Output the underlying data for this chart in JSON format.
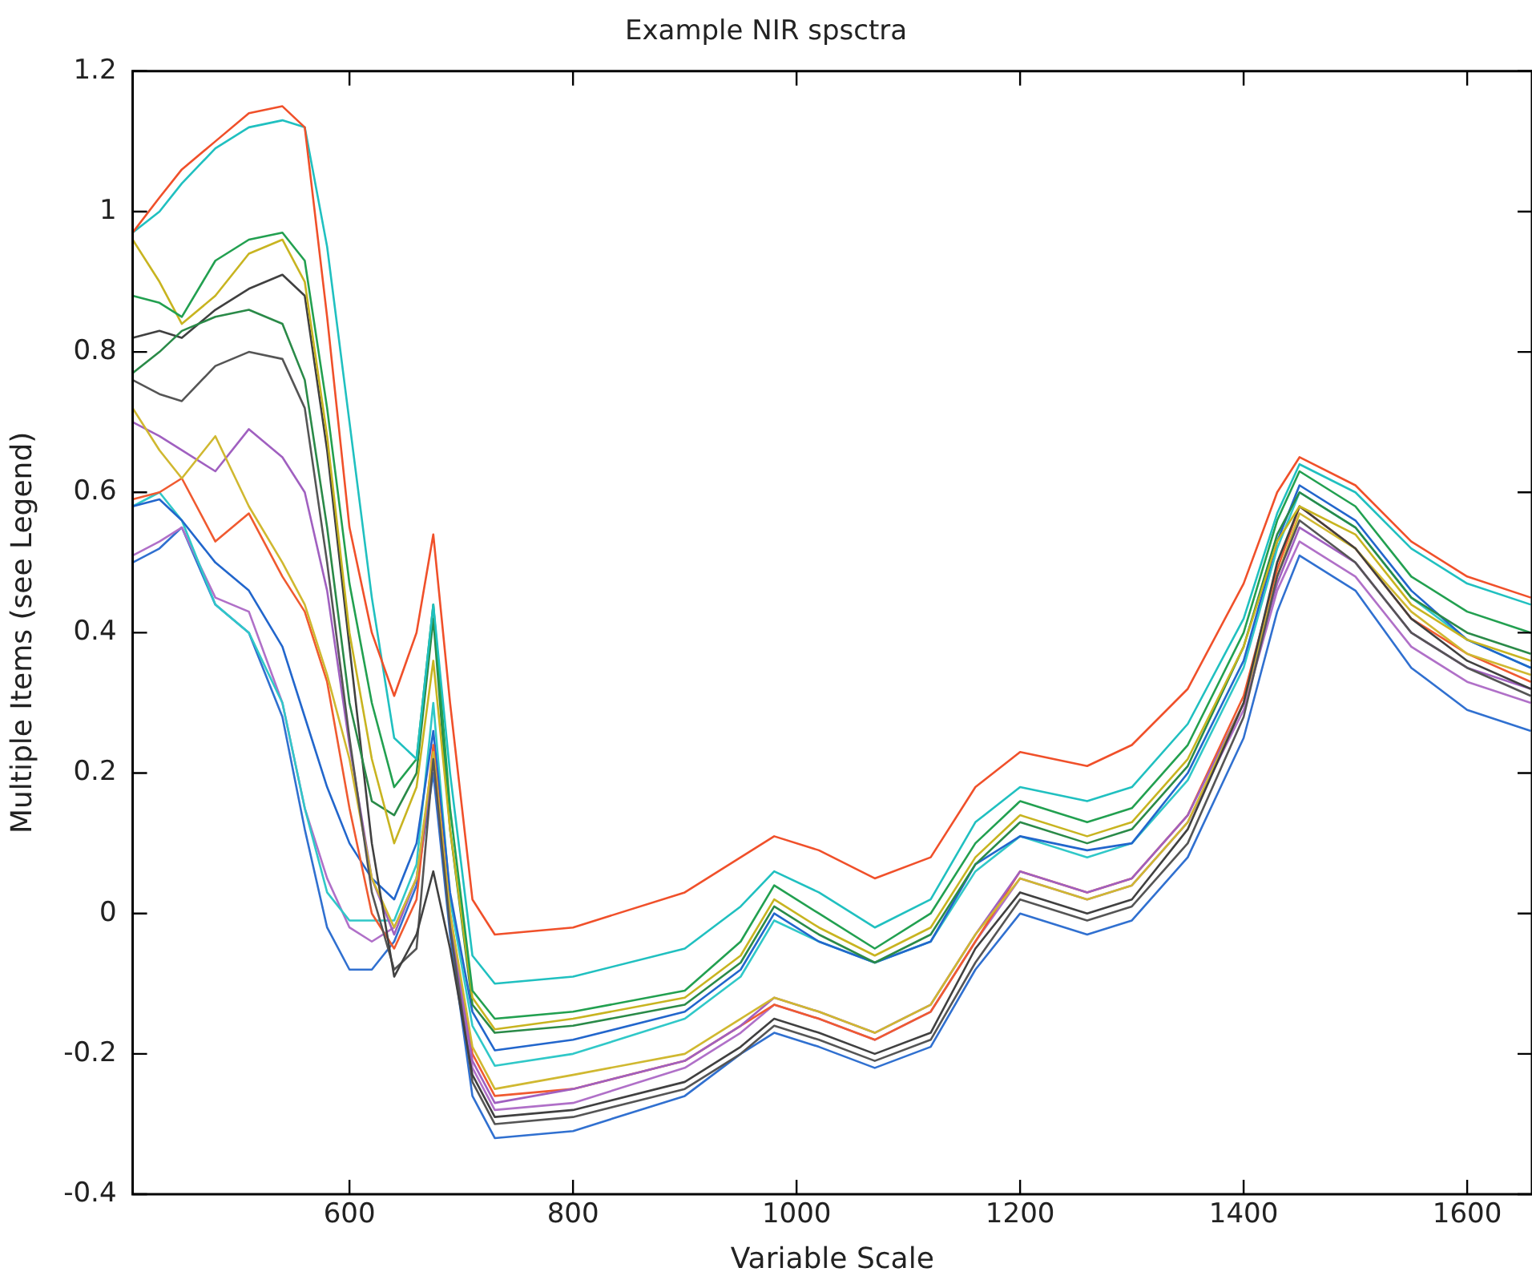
{
  "chart_data": {
    "type": "line",
    "title": "Example NIR spsctra",
    "xlabel": "Variable Scale",
    "ylabel": "Multiple Items (see Legend)",
    "x": [
      406,
      430,
      450,
      480,
      510,
      540,
      560,
      580,
      600,
      620,
      640,
      660,
      675,
      690,
      710,
      730,
      800,
      900,
      950,
      980,
      1020,
      1070,
      1120,
      1160,
      1200,
      1260,
      1300,
      1350,
      1400,
      1430,
      1450,
      1500,
      1550,
      1600,
      1657
    ],
    "series": [
      {
        "color": "#f0502a",
        "values": [
          0.97,
          1.02,
          1.06,
          1.1,
          1.14,
          1.15,
          1.12,
          0.85,
          0.55,
          0.4,
          0.31,
          0.4,
          0.54,
          0.3,
          0.02,
          -0.03,
          -0.02,
          0.03,
          0.08,
          0.11,
          0.09,
          0.05,
          0.08,
          0.18,
          0.23,
          0.21,
          0.24,
          0.32,
          0.47,
          0.6,
          0.65,
          0.61,
          0.53,
          0.48,
          0.45
        ]
      },
      {
        "color": "#20c0c0",
        "values": [
          0.97,
          1.0,
          1.04,
          1.09,
          1.12,
          1.13,
          1.12,
          0.95,
          0.7,
          0.45,
          0.25,
          0.22,
          0.44,
          0.2,
          -0.06,
          -0.1,
          -0.09,
          -0.05,
          0.01,
          0.06,
          0.03,
          -0.02,
          0.02,
          0.13,
          0.18,
          0.16,
          0.18,
          0.27,
          0.42,
          0.57,
          0.64,
          0.6,
          0.52,
          0.47,
          0.44
        ]
      },
      {
        "color": "#22a050",
        "values": [
          0.88,
          0.87,
          0.85,
          0.93,
          0.96,
          0.97,
          0.93,
          0.72,
          0.47,
          0.3,
          0.18,
          0.22,
          0.44,
          0.15,
          -0.11,
          -0.15,
          -0.14,
          -0.11,
          -0.04,
          0.04,
          0.0,
          -0.05,
          0.0,
          0.1,
          0.16,
          0.13,
          0.15,
          0.24,
          0.4,
          0.56,
          0.63,
          0.58,
          0.48,
          0.43,
          0.4
        ]
      },
      {
        "color": "#c8b420",
        "values": [
          0.96,
          0.9,
          0.84,
          0.88,
          0.94,
          0.96,
          0.9,
          0.68,
          0.4,
          0.22,
          0.1,
          0.18,
          0.36,
          0.12,
          -0.12,
          -0.165,
          -0.15,
          -0.12,
          -0.06,
          0.02,
          -0.02,
          -0.06,
          -0.02,
          0.08,
          0.14,
          0.11,
          0.13,
          0.22,
          0.38,
          0.53,
          0.58,
          0.54,
          0.44,
          0.39,
          0.36
        ]
      },
      {
        "color": "#2a8a48",
        "values": [
          0.77,
          0.8,
          0.83,
          0.85,
          0.86,
          0.84,
          0.76,
          0.55,
          0.3,
          0.16,
          0.14,
          0.2,
          0.42,
          0.12,
          -0.13,
          -0.17,
          -0.16,
          -0.13,
          -0.07,
          0.01,
          -0.03,
          -0.07,
          -0.03,
          0.07,
          0.13,
          0.1,
          0.12,
          0.21,
          0.38,
          0.54,
          0.6,
          0.55,
          0.45,
          0.4,
          0.37
        ]
      },
      {
        "color": "#404040",
        "values": [
          0.82,
          0.83,
          0.82,
          0.86,
          0.89,
          0.91,
          0.88,
          0.66,
          0.38,
          0.1,
          -0.09,
          -0.03,
          0.06,
          -0.05,
          -0.23,
          -0.29,
          -0.28,
          -0.24,
          -0.19,
          -0.15,
          -0.17,
          -0.2,
          -0.17,
          -0.05,
          0.03,
          0.0,
          0.02,
          0.12,
          0.3,
          0.5,
          0.58,
          0.52,
          0.42,
          0.36,
          0.32
        ]
      },
      {
        "color": "#555555",
        "values": [
          0.76,
          0.74,
          0.73,
          0.78,
          0.8,
          0.79,
          0.72,
          0.5,
          0.25,
          0.03,
          -0.08,
          -0.05,
          0.22,
          -0.02,
          -0.24,
          -0.3,
          -0.29,
          -0.25,
          -0.2,
          -0.16,
          -0.18,
          -0.21,
          -0.18,
          -0.07,
          0.02,
          -0.01,
          0.01,
          0.1,
          0.28,
          0.48,
          0.56,
          0.5,
          0.4,
          0.35,
          0.31
        ]
      },
      {
        "color": "#d0b830",
        "values": [
          0.72,
          0.66,
          0.62,
          0.68,
          0.58,
          0.5,
          0.44,
          0.34,
          0.22,
          0.05,
          -0.02,
          0.05,
          0.23,
          0.0,
          -0.19,
          -0.25,
          -0.23,
          -0.2,
          -0.15,
          -0.12,
          -0.14,
          -0.17,
          -0.13,
          -0.03,
          0.05,
          0.02,
          0.04,
          0.13,
          0.3,
          0.48,
          0.57,
          0.52,
          0.43,
          0.37,
          0.34
        ]
      },
      {
        "color": "#a060c0",
        "values": [
          0.7,
          0.68,
          0.66,
          0.63,
          0.69,
          0.65,
          0.6,
          0.46,
          0.24,
          0.05,
          -0.03,
          0.05,
          0.22,
          -0.01,
          -0.21,
          -0.27,
          -0.25,
          -0.21,
          -0.16,
          -0.12,
          -0.14,
          -0.17,
          -0.13,
          -0.03,
          0.06,
          0.03,
          0.05,
          0.14,
          0.3,
          0.47,
          0.55,
          0.5,
          0.4,
          0.35,
          0.32
        ]
      },
      {
        "color": "#f05a30",
        "values": [
          0.59,
          0.6,
          0.62,
          0.53,
          0.57,
          0.48,
          0.43,
          0.33,
          0.15,
          0.0,
          -0.05,
          0.02,
          0.24,
          0.0,
          -0.2,
          -0.26,
          -0.25,
          -0.21,
          -0.16,
          -0.13,
          -0.15,
          -0.18,
          -0.14,
          -0.04,
          0.06,
          0.03,
          0.05,
          0.14,
          0.31,
          0.49,
          0.58,
          0.52,
          0.42,
          0.37,
          0.33
        ]
      },
      {
        "color": "#2266cc",
        "values": [
          0.58,
          0.59,
          0.56,
          0.5,
          0.46,
          0.38,
          0.28,
          0.18,
          0.1,
          0.05,
          0.02,
          0.1,
          0.26,
          0.03,
          -0.14,
          -0.195,
          -0.18,
          -0.14,
          -0.08,
          0.0,
          -0.04,
          -0.07,
          -0.04,
          0.07,
          0.11,
          0.09,
          0.1,
          0.2,
          0.36,
          0.53,
          0.61,
          0.56,
          0.46,
          0.39,
          0.35
        ]
      },
      {
        "color": "#30c8c8",
        "values": [
          0.58,
          0.6,
          0.56,
          0.44,
          0.4,
          0.3,
          0.15,
          0.03,
          -0.01,
          -0.01,
          -0.01,
          0.07,
          0.3,
          0.02,
          -0.16,
          -0.217,
          -0.2,
          -0.15,
          -0.09,
          -0.01,
          -0.04,
          -0.07,
          -0.04,
          0.06,
          0.11,
          0.08,
          0.1,
          0.19,
          0.35,
          0.52,
          0.6,
          0.55,
          0.45,
          0.39,
          0.35
        ]
      },
      {
        "color": "#b070c8",
        "values": [
          0.51,
          0.53,
          0.55,
          0.45,
          0.43,
          0.3,
          0.15,
          0.05,
          -0.02,
          -0.04,
          -0.02,
          0.05,
          0.22,
          -0.01,
          -0.22,
          -0.28,
          -0.27,
          -0.22,
          -0.17,
          -0.13,
          -0.15,
          -0.18,
          -0.14,
          -0.04,
          0.05,
          0.02,
          0.04,
          0.13,
          0.29,
          0.46,
          0.53,
          0.48,
          0.38,
          0.33,
          0.3
        ]
      },
      {
        "color": "#3070d0",
        "values": [
          0.5,
          0.52,
          0.55,
          0.44,
          0.4,
          0.28,
          0.12,
          -0.02,
          -0.08,
          -0.08,
          -0.04,
          0.04,
          0.2,
          -0.03,
          -0.26,
          -0.32,
          -0.31,
          -0.26,
          -0.2,
          -0.17,
          -0.19,
          -0.22,
          -0.19,
          -0.08,
          0.0,
          -0.03,
          -0.01,
          0.08,
          0.25,
          0.43,
          0.51,
          0.46,
          0.35,
          0.29,
          0.26
        ]
      }
    ],
    "xlim": [
      406,
      1658
    ],
    "xticks": [
      600,
      800,
      1000,
      1200,
      1400,
      1600
    ],
    "ylim": [
      -0.4,
      1.2
    ],
    "yticks": [
      -0.4,
      -0.2,
      0,
      0.2,
      0.4,
      0.6,
      0.8,
      1,
      1.2
    ],
    "marker": "none",
    "line_style": "solid",
    "grid": false,
    "legend": false
  }
}
